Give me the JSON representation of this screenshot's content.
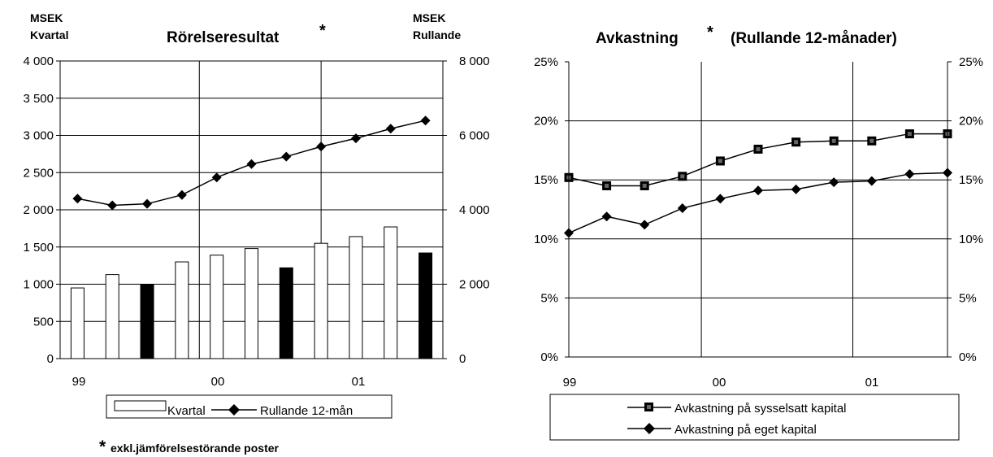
{
  "chart_data": [
    {
      "type": "bar",
      "title": "Rörelseresultat",
      "title_marker": "*",
      "left_axis_label": [
        "MSEK",
        "Kvartal"
      ],
      "right_axis_label": [
        "MSEK",
        "Rullande"
      ],
      "x_tick_labels": [
        "99",
        "00",
        "01"
      ],
      "ylim": [
        0,
        4000
      ],
      "y_ticks": [
        0,
        500,
        1000,
        1500,
        2000,
        2500,
        3000,
        3500,
        4000
      ],
      "y_tick_labels": [
        "0",
        "500",
        "1 000",
        "1 500",
        "2 000",
        "2 500",
        "3 000",
        "3 500",
        "4 000"
      ],
      "y2lim": [
        0,
        8000
      ],
      "y2_ticks": [
        0,
        2000,
        4000,
        6000,
        8000
      ],
      "y2_tick_labels": [
        "0",
        "2 000",
        "4 000",
        "6 000",
        "8 000"
      ],
      "grid": true,
      "legend_position": "bottom",
      "series": [
        {
          "name": "Kvartal",
          "kind": "bar",
          "axis": "left",
          "values": [
            950,
            1130,
            1000,
            1300,
            1390,
            1480,
            1220,
            1550,
            1640,
            1770,
            1420
          ],
          "highlighted": [
            false,
            false,
            true,
            false,
            false,
            false,
            true,
            false,
            false,
            false,
            true
          ]
        },
        {
          "name": "Rullande 12-mån",
          "kind": "line",
          "axis": "right",
          "marker": "diamond",
          "values": [
            4300,
            4120,
            4160,
            4400,
            4870,
            5230,
            5430,
            5700,
            5920,
            6180,
            6400
          ]
        }
      ],
      "footnote_marker": "*",
      "footnote": "exkl.jämförelsestörande poster"
    },
    {
      "type": "line",
      "title": "Avkastning",
      "title_marker": "*",
      "title_suffix": "(Rullande 12-månader)",
      "x_tick_labels": [
        "99",
        "00",
        "01"
      ],
      "ylim": [
        0,
        25
      ],
      "y_ticks": [
        0,
        5,
        10,
        15,
        20,
        25
      ],
      "y_tick_labels": [
        "0%",
        "5%",
        "10%",
        "15%",
        "20%",
        "25%"
      ],
      "grid": true,
      "legend_position": "bottom",
      "series": [
        {
          "name": "Avkastning på sysselsatt kapital",
          "marker": "square",
          "values": [
            15.2,
            14.5,
            14.5,
            15.3,
            16.6,
            17.6,
            18.2,
            18.3,
            18.3,
            18.9,
            18.9
          ]
        },
        {
          "name": "Avkastning på eget kapital",
          "marker": "diamond",
          "values": [
            10.5,
            11.9,
            11.2,
            12.6,
            13.4,
            14.1,
            14.2,
            14.8,
            14.9,
            15.5,
            15.6
          ]
        }
      ]
    }
  ]
}
